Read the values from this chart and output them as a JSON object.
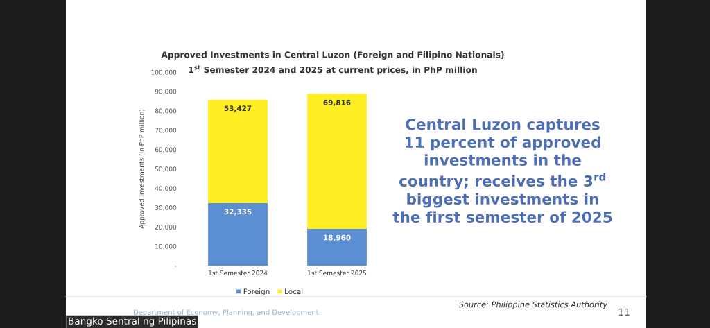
{
  "chart_data": {
    "type": "bar",
    "title": "Approved Investments in Central Luzon (Foreign and Filipino Nationals)",
    "subtitle": "1$^{st}$ Semester 2024 and 2025 at current prices, in PhP million",
    "ylabel": "Approved Investments (in PhP million)",
    "categories": [
      "1st Semester 2024",
      "1st Semester 2025"
    ],
    "stacked": true,
    "series": [
      {
        "name": "Foreign",
        "color": "#5b8fd2",
        "values": [
          32335,
          18960
        ],
        "value_labels": [
          "32,335",
          "18,960"
        ]
      },
      {
        "name": "Local",
        "color": "#ffee22",
        "values": [
          53427,
          69816
        ],
        "value_labels": [
          "53,427",
          "69,816"
        ]
      }
    ],
    "ylim": [
      0,
      100000
    ],
    "yticks": [
      {
        "value": 0,
        "label": "-"
      },
      {
        "value": 10000,
        "label": "10,000"
      },
      {
        "value": 20000,
        "label": "20,000"
      },
      {
        "value": 30000,
        "label": "30,000"
      },
      {
        "value": 40000,
        "label": "40,000"
      },
      {
        "value": 50000,
        "label": "50,000"
      },
      {
        "value": 60000,
        "label": "60,000"
      },
      {
        "value": 70000,
        "label": "70,000"
      },
      {
        "value": 80000,
        "label": "80,000"
      },
      {
        "value": 90000,
        "label": "90,000"
      },
      {
        "value": 100000,
        "label": "100,000"
      }
    ],
    "grid": false,
    "legend": "bottom",
    "annotations": [
      "Central Luzon captures\n11 percent of approved\ninvestments in the\ncountry; receives the 3$^{rd}$\nbiggest investments in\nthe first semester of 2025",
      "Department of Economy, Planning, and Development",
      "Source: Philippine Statistics Authority",
      "11",
      "Bangko Sentral ng Pilipinas"
    ]
  }
}
